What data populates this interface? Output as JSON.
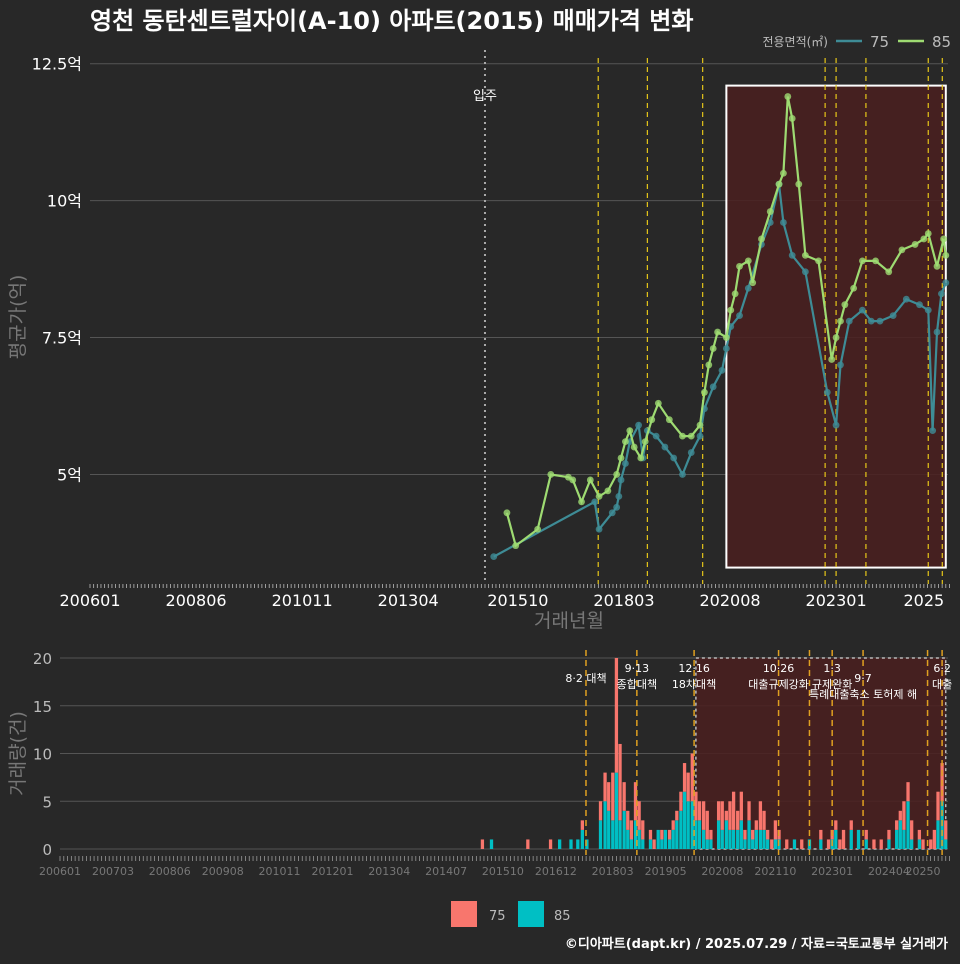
{
  "title": "영천 동탄센트럴자이(A-10) 아파트(2015) 매매가격 변화",
  "footer": "©디아파트(dapt.kr) / 2025.07.29 / 자료=국토교통부 실거래가",
  "legend": {
    "title": "전용면적(㎡)",
    "items": [
      {
        "label": "75",
        "color": "#3E8C96"
      },
      {
        "label": "85",
        "color": "#9EDB72"
      }
    ],
    "bar_items": [
      {
        "label": "75",
        "color": "#F8766D"
      },
      {
        "label": "85",
        "color": "#00BFC4"
      }
    ]
  },
  "colors": {
    "background": "#282828",
    "grid": "#4a4a4a",
    "policy_line": "#E6C619",
    "bar_policy_line": "#E0A020",
    "highlight_fill": "#4A1E1E",
    "move_in_line": "#AAAAAA"
  },
  "chart_data": [
    {
      "type": "line",
      "name": "price-chart",
      "xlabel": "거래년월",
      "ylabel": "평균가(억)",
      "x_ticks": [
        "200601",
        "200806",
        "201011",
        "201304",
        "201510",
        "201803",
        "202008",
        "202301",
        "2025"
      ],
      "y_ticks": [
        {
          "value": 5,
          "label": "5억"
        },
        {
          "value": 7.5,
          "label": "7.5억"
        },
        {
          "value": 10,
          "label": "10억"
        },
        {
          "value": 12.5,
          "label": "12.5억"
        }
      ],
      "xlim": [
        2006.0,
        2025.55
      ],
      "ylim": [
        3.0,
        12.75
      ],
      "move_in": {
        "x": 2015.0,
        "label": "입주"
      },
      "policy_lines": [
        2017.58,
        2018.7,
        2019.96,
        2022.75,
        2023.0,
        2023.68,
        2025.1,
        2025.42
      ],
      "highlight": {
        "x0": 2020.5,
        "x1": 2025.5,
        "y0": 3.3,
        "y1": 12.1
      },
      "series": [
        {
          "name": "75",
          "points": [
            [
              2015.2,
              3.5
            ],
            [
              2017.5,
              4.5
            ],
            [
              2017.6,
              4.0
            ],
            [
              2017.9,
              4.3
            ],
            [
              2018.0,
              4.4
            ],
            [
              2018.05,
              4.6
            ],
            [
              2018.1,
              4.9
            ],
            [
              2018.2,
              5.2
            ],
            [
              2018.3,
              5.6
            ],
            [
              2018.5,
              5.9
            ],
            [
              2018.6,
              5.3
            ],
            [
              2018.7,
              5.8
            ],
            [
              2018.9,
              5.7
            ],
            [
              2019.1,
              5.5
            ],
            [
              2019.3,
              5.3
            ],
            [
              2019.5,
              5.0
            ],
            [
              2019.7,
              5.4
            ],
            [
              2019.9,
              5.7
            ],
            [
              2020.0,
              6.2
            ],
            [
              2020.2,
              6.6
            ],
            [
              2020.4,
              6.9
            ],
            [
              2020.5,
              7.3
            ],
            [
              2020.6,
              7.7
            ],
            [
              2020.8,
              7.9
            ],
            [
              2021.0,
              8.4
            ],
            [
              2021.3,
              9.2
            ],
            [
              2021.5,
              9.6
            ],
            [
              2021.7,
              10.3
            ],
            [
              2021.8,
              9.6
            ],
            [
              2022.0,
              9.0
            ],
            [
              2022.3,
              8.7
            ],
            [
              2022.8,
              6.5
            ],
            [
              2023.0,
              5.9
            ],
            [
              2023.1,
              7.0
            ],
            [
              2023.3,
              7.8
            ],
            [
              2023.6,
              8.0
            ],
            [
              2023.8,
              7.8
            ],
            [
              2024.0,
              7.8
            ],
            [
              2024.3,
              7.9
            ],
            [
              2024.6,
              8.2
            ],
            [
              2024.9,
              8.1
            ],
            [
              2025.1,
              8.0
            ],
            [
              2025.2,
              5.8
            ],
            [
              2025.3,
              7.6
            ],
            [
              2025.4,
              8.3
            ],
            [
              2025.5,
              8.5
            ]
          ]
        },
        {
          "name": "85",
          "points": [
            [
              2015.5,
              4.3
            ],
            [
              2015.7,
              3.7
            ],
            [
              2016.2,
              4.0
            ],
            [
              2016.5,
              5.0
            ],
            [
              2016.9,
              4.95
            ],
            [
              2017.0,
              4.9
            ],
            [
              2017.2,
              4.5
            ],
            [
              2017.4,
              4.9
            ],
            [
              2017.6,
              4.6
            ],
            [
              2017.8,
              4.7
            ],
            [
              2018.0,
              5.0
            ],
            [
              2018.1,
              5.3
            ],
            [
              2018.2,
              5.6
            ],
            [
              2018.3,
              5.8
            ],
            [
              2018.4,
              5.5
            ],
            [
              2018.55,
              5.3
            ],
            [
              2018.65,
              5.6
            ],
            [
              2018.8,
              6.0
            ],
            [
              2018.95,
              6.3
            ],
            [
              2019.2,
              6.0
            ],
            [
              2019.5,
              5.7
            ],
            [
              2019.7,
              5.7
            ],
            [
              2019.9,
              5.9
            ],
            [
              2020.0,
              6.5
            ],
            [
              2020.1,
              7.0
            ],
            [
              2020.2,
              7.3
            ],
            [
              2020.3,
              7.6
            ],
            [
              2020.5,
              7.5
            ],
            [
              2020.6,
              8.0
            ],
            [
              2020.7,
              8.3
            ],
            [
              2020.8,
              8.8
            ],
            [
              2021.0,
              8.9
            ],
            [
              2021.1,
              8.5
            ],
            [
              2021.3,
              9.3
            ],
            [
              2021.5,
              9.8
            ],
            [
              2021.7,
              10.3
            ],
            [
              2021.8,
              10.5
            ],
            [
              2021.9,
              11.9
            ],
            [
              2022.0,
              11.5
            ],
            [
              2022.15,
              10.3
            ],
            [
              2022.3,
              9.0
            ],
            [
              2022.6,
              8.9
            ],
            [
              2022.9,
              7.1
            ],
            [
              2023.0,
              7.5
            ],
            [
              2023.1,
              7.8
            ],
            [
              2023.2,
              8.1
            ],
            [
              2023.4,
              8.4
            ],
            [
              2023.6,
              8.9
            ],
            [
              2023.9,
              8.9
            ],
            [
              2024.2,
              8.7
            ],
            [
              2024.5,
              9.1
            ],
            [
              2024.8,
              9.2
            ],
            [
              2025.0,
              9.3
            ],
            [
              2025.1,
              9.4
            ],
            [
              2025.3,
              8.8
            ],
            [
              2025.45,
              9.3
            ],
            [
              2025.5,
              9.0
            ]
          ]
        }
      ]
    },
    {
      "type": "bar",
      "name": "volume-chart",
      "ylabel": "거래량(건)",
      "x_ticks": [
        "200601",
        "200703",
        "200806",
        "200908",
        "201011",
        "201201",
        "201304",
        "201407",
        "201510",
        "201612",
        "201803",
        "201905",
        "202008",
        "202110",
        "202301",
        "202404",
        "20250"
      ],
      "y_ticks": [
        0,
        5,
        10,
        15,
        20
      ],
      "xlim": [
        2006.0,
        2025.55
      ],
      "ylim": [
        0,
        20
      ],
      "highlight": {
        "x0": 2020.0,
        "x1": 2025.5
      },
      "policy_lines": [
        {
          "x": 2017.58,
          "label": "8·2 대책",
          "row": 2
        },
        {
          "x": 2018.7,
          "label": "9·13\n종합대책",
          "row": 1
        },
        {
          "x": 2019.96,
          "label": "12·16\n18차대책",
          "row": 1
        },
        {
          "x": 2021.82,
          "label": "10·26\n대출규제강화",
          "row": 1
        },
        {
          "x": 2022.5,
          "label": "",
          "row": 1
        },
        {
          "x": 2023.0,
          "label": "1·3\n규제완화",
          "row": 1
        },
        {
          "x": 2023.68,
          "label": "9·7\n특례대출축소 토허제 해",
          "row": 2
        },
        {
          "x": 2025.1,
          "label": "",
          "row": 1
        },
        {
          "x": 2025.42,
          "label": "6·2\n대출",
          "row": 1
        }
      ],
      "bars": [
        [
          2015.3,
          1,
          0
        ],
        [
          2015.5,
          0,
          1
        ],
        [
          2016.3,
          1,
          0
        ],
        [
          2016.8,
          1,
          0
        ],
        [
          2017.0,
          0,
          1
        ],
        [
          2017.25,
          0,
          1
        ],
        [
          2017.4,
          0,
          1
        ],
        [
          2017.5,
          1,
          2
        ],
        [
          2017.6,
          0,
          1
        ],
        [
          2017.9,
          2,
          3
        ],
        [
          2018.0,
          3,
          5
        ],
        [
          2018.08,
          3,
          4
        ],
        [
          2018.17,
          5,
          3
        ],
        [
          2018.25,
          12,
          8
        ],
        [
          2018.33,
          8,
          3
        ],
        [
          2018.42,
          3,
          4
        ],
        [
          2018.5,
          2,
          2
        ],
        [
          2018.58,
          2,
          1
        ],
        [
          2018.67,
          4,
          3
        ],
        [
          2018.75,
          3,
          2
        ],
        [
          2018.83,
          2,
          1
        ],
        [
          2019.0,
          1,
          1
        ],
        [
          2019.08,
          1,
          0
        ],
        [
          2019.17,
          0,
          2
        ],
        [
          2019.25,
          1,
          1
        ],
        [
          2019.33,
          0,
          2
        ],
        [
          2019.42,
          1,
          1
        ],
        [
          2019.5,
          1,
          2
        ],
        [
          2019.58,
          1,
          3
        ],
        [
          2019.67,
          2,
          4
        ],
        [
          2019.75,
          3,
          6
        ],
        [
          2019.83,
          3,
          5
        ],
        [
          2019.92,
          5,
          5
        ],
        [
          2020.0,
          3,
          3
        ],
        [
          2020.08,
          2,
          3
        ],
        [
          2020.17,
          3,
          2
        ],
        [
          2020.25,
          3,
          1
        ],
        [
          2020.33,
          1,
          1
        ],
        [
          2020.5,
          2,
          3
        ],
        [
          2020.58,
          3,
          2
        ],
        [
          2020.67,
          1,
          3
        ],
        [
          2020.75,
          3,
          2
        ],
        [
          2020.83,
          4,
          2
        ],
        [
          2020.92,
          2,
          2
        ],
        [
          2021.0,
          3,
          3
        ],
        [
          2021.08,
          1,
          1
        ],
        [
          2021.17,
          2,
          3
        ],
        [
          2021.25,
          1,
          1
        ],
        [
          2021.33,
          1,
          2
        ],
        [
          2021.42,
          3,
          2
        ],
        [
          2021.5,
          2,
          2
        ],
        [
          2021.58,
          1,
          1
        ],
        [
          2021.67,
          1,
          0
        ],
        [
          2021.75,
          2,
          1
        ],
        [
          2021.83,
          1,
          1
        ],
        [
          2022.0,
          1,
          0
        ],
        [
          2022.17,
          0,
          1
        ],
        [
          2022.33,
          1,
          0
        ],
        [
          2022.5,
          0,
          1
        ],
        [
          2022.75,
          1,
          1
        ],
        [
          2022.92,
          1,
          0
        ],
        [
          2023.0,
          1,
          1
        ],
        [
          2023.08,
          1,
          2
        ],
        [
          2023.17,
          1,
          0
        ],
        [
          2023.25,
          2,
          0
        ],
        [
          2023.42,
          1,
          2
        ],
        [
          2023.58,
          0,
          2
        ],
        [
          2023.75,
          1,
          1
        ],
        [
          2023.92,
          1,
          0
        ],
        [
          2024.08,
          1,
          0
        ],
        [
          2024.25,
          1,
          1
        ],
        [
          2024.42,
          1,
          2
        ],
        [
          2024.5,
          1,
          3
        ],
        [
          2024.58,
          3,
          2
        ],
        [
          2024.67,
          2,
          5
        ],
        [
          2024.75,
          2,
          1
        ],
        [
          2024.92,
          1,
          1
        ],
        [
          2025.0,
          1,
          0
        ],
        [
          2025.17,
          1,
          0
        ],
        [
          2025.25,
          2,
          0
        ],
        [
          2025.33,
          3,
          3
        ],
        [
          2025.42,
          4,
          5
        ],
        [
          2025.5,
          2,
          1
        ]
      ]
    }
  ]
}
